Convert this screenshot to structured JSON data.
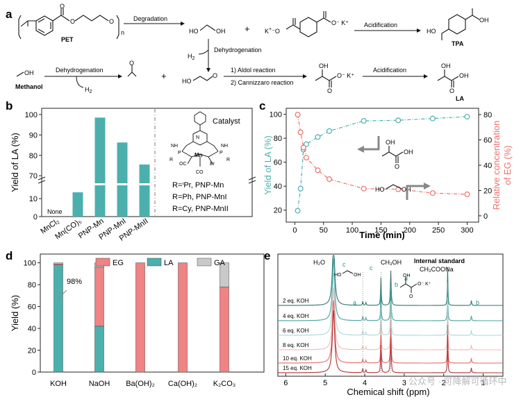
{
  "panel_labels": {
    "a": "a",
    "b": "b",
    "c": "c",
    "d": "d",
    "e": "e"
  },
  "scheme": {
    "pet": "PET",
    "tpa": "TPA",
    "la": "LA",
    "methanol": "Methanol",
    "n": "n",
    "h2": "H",
    "h2sub": "2",
    "kplus": "K",
    "degradation": "Degradation",
    "dehydrogenation1": "Dehydrogenation",
    "dehydrogenation2": "Dehydrogenation",
    "acidification1": "Acidification",
    "acidification2": "Acidification",
    "aldol": "1) Aldol reaction",
    "cannizzaro": "2) Cannizzaro reaction",
    "plus": "+",
    "oh": "OH",
    "ho": "HO"
  },
  "panel_b": {
    "ylabel": "Yield of LA (%)",
    "catalyst_title": "Catalyst",
    "none_label": "None",
    "r_lines": [
      "R=ⁱPr,  PNP-Mn",
      "R=Ph,  PNP-MnI",
      "R=Cy,  PNP-MnII"
    ],
    "ticks_top": [
      "70",
      "80",
      "90",
      "100"
    ],
    "ticks_bottom": [
      "0",
      "10"
    ]
  },
  "panel_c": {
    "xlabel": "Time (min)",
    "ylabel_left": "Yield of LA (%)",
    "ylabel_right": "Relative concentration of EG (%)"
  },
  "panel_d": {
    "ylabel": "Yield (%)",
    "annotation": "98%"
  },
  "panel_e": {
    "xlabel": "Chemical shift (ppm)",
    "peak_labels": [
      "H₂O",
      "c",
      "c",
      "CH₃OH",
      "Internal standard",
      "CH₃COONa",
      "a",
      "b",
      "a",
      "b"
    ],
    "struct_labels": {
      "ho": "HO",
      "oh": "OH",
      "oh2": "OH",
      "ok": "O⁻ K⁺",
      "o": "O"
    },
    "traces": [
      "2 eq. KOH",
      "4 eq. KOH",
      "6 eq. KOH",
      "8 eq. KOH",
      "10 eq. KOH",
      "15 eq. KOH"
    ],
    "ticks": [
      "6",
      "5",
      "4",
      "3",
      "2",
      "1"
    ],
    "watermark": "公众号 · 可降解可循环中"
  },
  "chart_data": [
    {
      "panel": "b",
      "type": "bar",
      "categories": [
        "MnCl₂",
        "Mn(CO)₅",
        "PNP-Mn",
        "PNP-MnI",
        "PNP-MnII"
      ],
      "values": [
        0,
        13.5,
        98.5,
        86.3,
        75.5
      ],
      "ylabel": "Yield of LA (%)",
      "yaxis": "broken 0–17 / 67–100",
      "bar_color": "#4bb0ad"
    },
    {
      "panel": "c",
      "type": "line",
      "x": [
        5,
        10,
        15,
        20,
        40,
        60,
        120,
        180,
        240,
        300
      ],
      "series": [
        {
          "values": [
            19.5,
            38,
            70.5,
            75,
            81,
            86,
            94.5,
            95,
            96.5,
            98
          ]
        },
        {
          "values": [
            80,
            66,
            54,
            46,
            36,
            29,
            21.5,
            21,
            18,
            17
          ]
        }
      ],
      "xlim": [
        -15,
        320
      ],
      "ylim_left": [
        10,
        105
      ],
      "ylim_right": [
        -5,
        85
      ],
      "xlabel": "Time (min)",
      "ylabel": "Yield of LA (%)",
      "ylabel_right": "Relative concentration of EG (%)",
      "colors": [
        "#4bb0ad",
        "#ef6f6c"
      ]
    },
    {
      "panel": "d",
      "type": "bar",
      "categories": [
        "KOH",
        "NaOH",
        "Ba(OH)₂",
        "Ca(OH)₂",
        "K₂CO₃"
      ],
      "series": [
        {
          "name": "EG",
          "values": [
            1,
            54,
            100,
            100,
            78
          ]
        },
        {
          "name": "LA",
          "values": [
            98,
            42,
            0,
            0,
            0
          ]
        },
        {
          "name": "GA",
          "values": [
            1,
            4,
            0,
            0,
            22
          ]
        }
      ],
      "stacked": true,
      "ylabel": "Yield (%)",
      "ylim": [
        0,
        108
      ],
      "colors": [
        "#f08383",
        "#4bb0ad",
        "#c9c9c9"
      ],
      "legend": "top"
    }
  ]
}
